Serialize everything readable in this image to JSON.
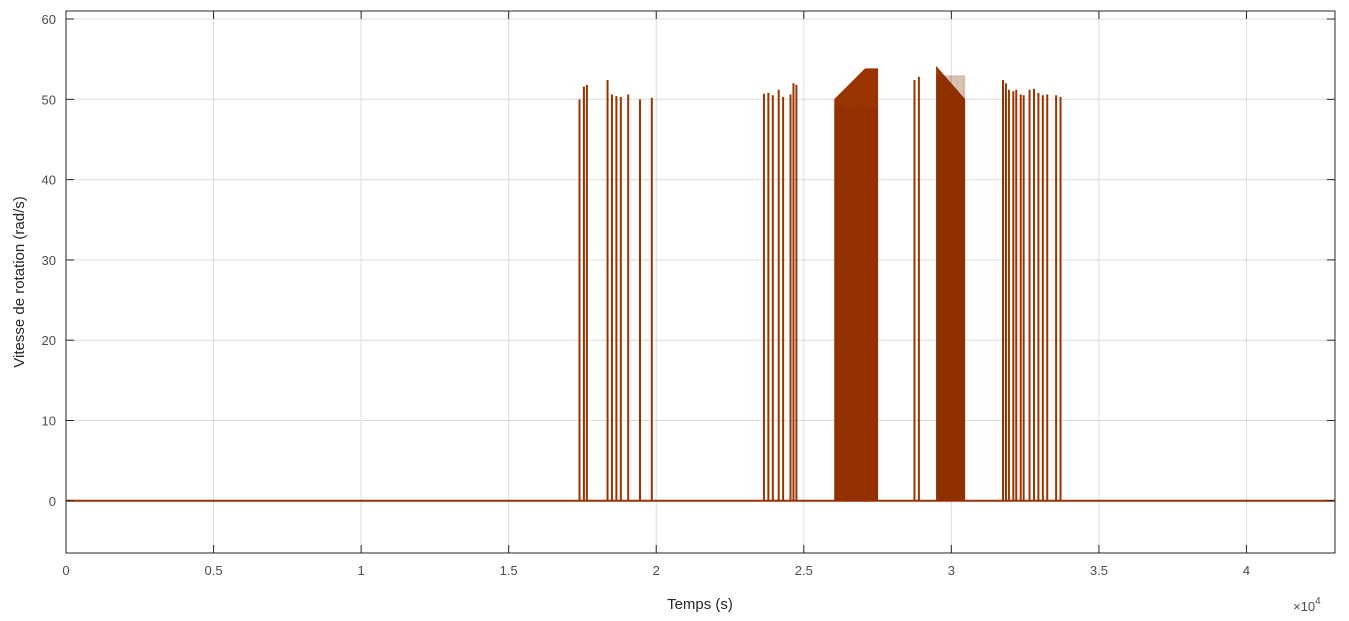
{
  "chart_data": {
    "type": "line",
    "title": "",
    "xlabel": "Temps (s)",
    "ylabel": "Vitesse de rotation (rad/s)",
    "x_multiplier": "×10",
    "x_multiplier_exp": "4",
    "xlim": [
      0,
      43000
    ],
    "ylim": [
      -6.5,
      61
    ],
    "xticks": [
      0,
      5000,
      10000,
      15000,
      20000,
      25000,
      30000,
      35000,
      40000
    ],
    "xtick_labels": [
      "0",
      "0.5",
      "1",
      "1.5",
      "2",
      "2.5",
      "3",
      "3.5",
      "4"
    ],
    "yticks": [
      0,
      10,
      20,
      30,
      40,
      50,
      60
    ],
    "ytick_labels": [
      "0",
      "10",
      "20",
      "30",
      "40",
      "50",
      "60"
    ],
    "grid": true,
    "line_color": "#993300",
    "baseline": 0,
    "series": [
      {
        "description_of_bursts": "",
        "spikes": [
          [
            17400,
            50.0
          ],
          [
            17550,
            51.6
          ],
          [
            17650,
            51.8
          ],
          [
            18350,
            52.4
          ],
          [
            18500,
            50.6
          ],
          [
            18650,
            50.4
          ],
          [
            18800,
            50.3
          ],
          [
            19050,
            50.6
          ],
          [
            19450,
            50.0
          ],
          [
            19850,
            50.2
          ],
          [
            23650,
            50.7
          ],
          [
            23800,
            50.8
          ],
          [
            23950,
            50.5
          ],
          [
            24150,
            51.2
          ],
          [
            24300,
            50.3
          ],
          [
            24550,
            50.6
          ],
          [
            24650,
            52.0
          ],
          [
            24750,
            51.8
          ],
          [
            28750,
            52.4
          ],
          [
            28900,
            52.8
          ],
          [
            31750,
            52.4
          ],
          [
            31850,
            52.0
          ],
          [
            31950,
            51.2
          ],
          [
            32100,
            51.0
          ],
          [
            32200,
            51.2
          ],
          [
            32350,
            50.6
          ],
          [
            32450,
            50.5
          ],
          [
            32650,
            51.2
          ],
          [
            32800,
            51.3
          ],
          [
            32950,
            50.8
          ],
          [
            33100,
            50.5
          ],
          [
            33250,
            50.6
          ],
          [
            33550,
            50.5
          ],
          [
            33700,
            50.3
          ]
        ],
        "dense_bursts": [
          {
            "start": 26050,
            "end": 27500,
            "start_value": 50.0,
            "peak": 53.8,
            "end_value": 53.8
          },
          {
            "start": 29500,
            "end": 30450,
            "start_value": 54.0,
            "peak": 54.0,
            "end_value": 50.0
          }
        ]
      }
    ]
  }
}
